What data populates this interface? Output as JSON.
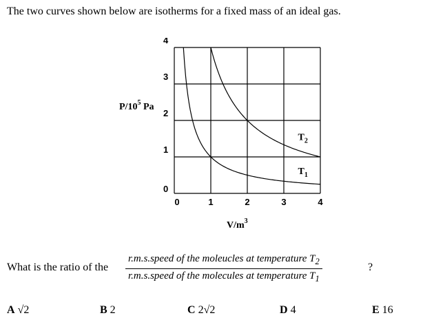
{
  "intro_text": "The two curves shown below are isotherms for a fixed mass of an ideal gas.",
  "chart_data": {
    "type": "line",
    "xlabel": "V/m",
    "xlabel_sup": "3",
    "ylabel": "P/10",
    "ylabel_sup": "5",
    "ylabel_unit": "Pa",
    "xlim": [
      0,
      4
    ],
    "ylim": [
      0,
      4
    ],
    "x_ticks": [
      "0",
      "1",
      "2",
      "3",
      "4"
    ],
    "y_ticks": [
      "0",
      "1",
      "2",
      "3",
      "4"
    ],
    "grid": true,
    "series": [
      {
        "name": "T",
        "sub": "2",
        "pv_constant": 4
      },
      {
        "name": "T",
        "sub": "1",
        "pv_constant": 1
      }
    ]
  },
  "question": {
    "lead": "What is the ratio of the",
    "numerator": "r.m.s.speed of the moleucles at temperature T",
    "numerator_sub": "2",
    "denominator": "r.m.s.speed of the molecules at temperature T",
    "denominator_sub": "1",
    "end": "?"
  },
  "options": [
    {
      "letter": "A",
      "text": "√2"
    },
    {
      "letter": "B",
      "text": "2"
    },
    {
      "letter": "C",
      "text": "2√2"
    },
    {
      "letter": "D",
      "text": "4"
    },
    {
      "letter": "E",
      "text": "16"
    }
  ]
}
